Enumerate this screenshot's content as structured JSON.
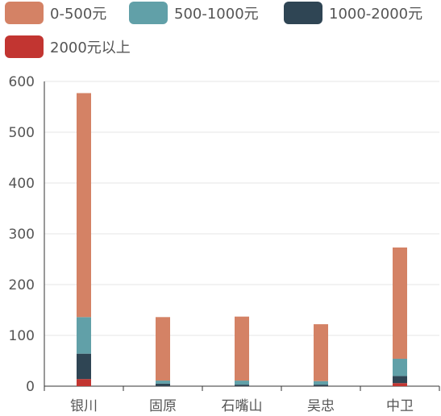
{
  "chart_data": {
    "type": "bar",
    "stacked": true,
    "categories": [
      "银川",
      "固原",
      "石嘴山",
      "吴忠",
      "中卫"
    ],
    "series": [
      {
        "name": "2000元以上",
        "color": "#c23531",
        "values": [
          14,
          0,
          0,
          0,
          6
        ]
      },
      {
        "name": "1000-2000元",
        "color": "#2f4554",
        "values": [
          50,
          5,
          3,
          3,
          14
        ]
      },
      {
        "name": "500-1000元",
        "color": "#61a0a8",
        "values": [
          72,
          6,
          8,
          7,
          34
        ]
      },
      {
        "name": "0-500元",
        "color": "#d48265",
        "values": [
          441,
          125,
          126,
          112,
          219
        ]
      }
    ],
    "ylim": [
      0,
      600
    ],
    "yticks": [
      0,
      100,
      200,
      300,
      400,
      500,
      600
    ],
    "grid": true,
    "legend_position": "top"
  },
  "legend": {
    "items": [
      {
        "label": "0-500元",
        "color": "#d48265"
      },
      {
        "label": "500-1000元",
        "color": "#61a0a8"
      },
      {
        "label": "1000-2000元",
        "color": "#2f4554"
      },
      {
        "label": "2000元以上",
        "color": "#c23531"
      }
    ]
  }
}
